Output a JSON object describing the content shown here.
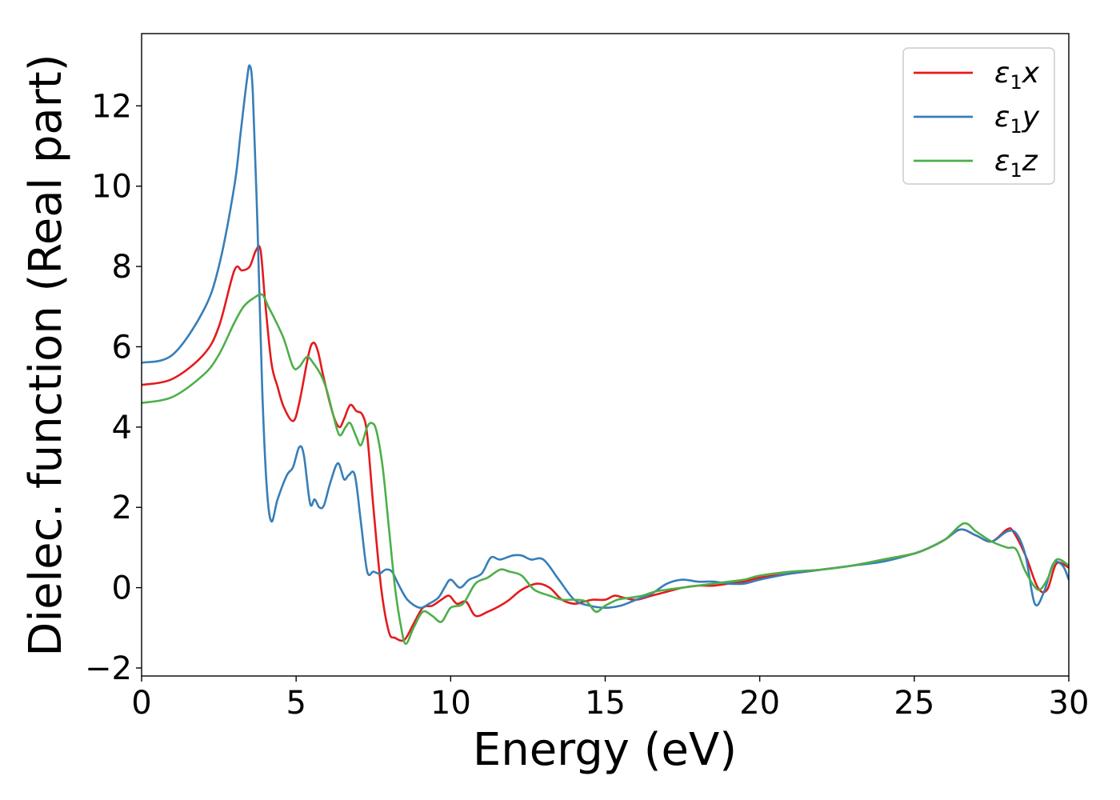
{
  "chart_data": {
    "type": "line",
    "xlabel": "Energy (eV)",
    "ylabel": "Dielec. function (Real part)",
    "xlim": [
      0,
      30
    ],
    "ylim": [
      -2.2,
      13.8
    ],
    "xticks": [
      0,
      5,
      10,
      15,
      20,
      25,
      30
    ],
    "yticks": [
      -2,
      0,
      2,
      4,
      6,
      8,
      10,
      12
    ],
    "xtick_labels": [
      "0",
      "5",
      "10",
      "15",
      "20",
      "25",
      "30"
    ],
    "ytick_labels": [
      "−2",
      "0",
      "2",
      "4",
      "6",
      "8",
      "10",
      "12"
    ],
    "grid": false,
    "legend_position": "top-right",
    "series": [
      {
        "name": "ε1x",
        "label_main": "ε",
        "label_sub": "1",
        "label_tail": "x",
        "color": "#e41a1c",
        "x": [
          0,
          1,
          2,
          2.5,
          3,
          3.25,
          3.5,
          3.7,
          3.85,
          4.0,
          4.2,
          4.4,
          4.6,
          4.9,
          5.1,
          5.4,
          5.55,
          5.7,
          5.9,
          6.2,
          6.4,
          6.55,
          6.75,
          6.95,
          7.15,
          7.3,
          7.5,
          7.75,
          8.0,
          8.2,
          8.5,
          8.8,
          9.1,
          9.4,
          9.7,
          9.95,
          10.2,
          10.5,
          10.8,
          11.2,
          11.6,
          11.9,
          12.3,
          12.8,
          13.2,
          13.6,
          14.0,
          14.3,
          14.6,
          15.0,
          15.3,
          15.6,
          16.0,
          16.5,
          17.0,
          17.5,
          18.0,
          18.5,
          19.0,
          19.5,
          20.0,
          21.0,
          22.0,
          23.0,
          24.0,
          25.0,
          25.5,
          26.0,
          26.5,
          27.0,
          27.5,
          28.0,
          28.2,
          28.6,
          29.0,
          29.3,
          29.6,
          30.0
        ],
        "values": [
          5.05,
          5.2,
          5.8,
          6.5,
          7.9,
          7.9,
          8.0,
          8.4,
          8.4,
          7.1,
          5.6,
          5.0,
          4.5,
          4.15,
          4.6,
          5.8,
          6.1,
          5.9,
          5.2,
          4.3,
          4.0,
          4.2,
          4.55,
          4.4,
          4.3,
          3.8,
          2.0,
          0.0,
          -1.1,
          -1.25,
          -1.3,
          -0.9,
          -0.5,
          -0.45,
          -0.3,
          -0.2,
          -0.4,
          -0.35,
          -0.7,
          -0.6,
          -0.45,
          -0.3,
          -0.05,
          0.1,
          0.0,
          -0.3,
          -0.4,
          -0.35,
          -0.3,
          -0.3,
          -0.2,
          -0.25,
          -0.3,
          -0.2,
          -0.1,
          0.0,
          0.05,
          0.05,
          0.1,
          0.15,
          0.25,
          0.35,
          0.45,
          0.55,
          0.7,
          0.85,
          1.0,
          1.2,
          1.45,
          1.3,
          1.15,
          1.45,
          1.4,
          0.8,
          0.0,
          -0.05,
          0.6,
          0.5
        ]
      },
      {
        "name": "ε1y",
        "label_main": "ε",
        "label_sub": "1",
        "label_tail": "y",
        "color": "#377eb8",
        "x": [
          0,
          1,
          2,
          2.5,
          3.0,
          3.2,
          3.4,
          3.5,
          3.6,
          3.75,
          3.9,
          4.05,
          4.2,
          4.4,
          4.7,
          4.9,
          5.1,
          5.25,
          5.45,
          5.6,
          5.75,
          5.9,
          6.1,
          6.35,
          6.55,
          6.7,
          6.9,
          7.1,
          7.3,
          7.5,
          7.7,
          7.9,
          8.1,
          8.3,
          8.6,
          9.0,
          9.3,
          9.6,
          9.8,
          10.0,
          10.3,
          10.6,
          11.0,
          11.3,
          11.6,
          12.0,
          12.3,
          12.6,
          13.0,
          13.5,
          14.0,
          14.5,
          15.0,
          15.5,
          16.0,
          16.5,
          17.0,
          17.5,
          18.0,
          18.5,
          19.0,
          19.5,
          20.0,
          21.0,
          22.0,
          23.0,
          24.0,
          25.0,
          25.5,
          26.0,
          26.5,
          27.0,
          27.5,
          28.0,
          28.3,
          28.6,
          28.9,
          29.2,
          29.5,
          29.8,
          30.0
        ],
        "values": [
          5.6,
          5.8,
          6.9,
          8.0,
          10.0,
          11.3,
          12.6,
          13.0,
          12.3,
          9.0,
          5.0,
          2.5,
          1.65,
          2.2,
          2.8,
          3.0,
          3.5,
          3.3,
          2.1,
          2.2,
          2.0,
          2.05,
          2.6,
          3.1,
          2.7,
          2.8,
          2.8,
          1.6,
          0.4,
          0.4,
          0.35,
          0.45,
          0.4,
          0.1,
          -0.3,
          -0.5,
          -0.4,
          -0.25,
          0.0,
          0.2,
          0.0,
          0.2,
          0.35,
          0.75,
          0.7,
          0.8,
          0.8,
          0.7,
          0.7,
          0.2,
          -0.3,
          -0.45,
          -0.5,
          -0.45,
          -0.3,
          -0.15,
          0.1,
          0.2,
          0.15,
          0.15,
          0.1,
          0.1,
          0.2,
          0.35,
          0.45,
          0.55,
          0.65,
          0.85,
          1.0,
          1.2,
          1.45,
          1.3,
          1.15,
          1.4,
          1.35,
          0.8,
          -0.4,
          -0.1,
          0.6,
          0.55,
          0.2
        ]
      },
      {
        "name": "ε1z",
        "label_main": "ε",
        "label_sub": "1",
        "label_tail": "z",
        "color": "#4daf4a",
        "x": [
          0,
          1,
          2,
          2.5,
          3.0,
          3.3,
          3.6,
          3.9,
          4.1,
          4.3,
          4.6,
          4.9,
          5.1,
          5.35,
          5.55,
          5.8,
          6.0,
          6.2,
          6.4,
          6.6,
          6.75,
          6.95,
          7.1,
          7.3,
          7.45,
          7.6,
          7.8,
          8.0,
          8.2,
          8.4,
          8.55,
          8.8,
          9.1,
          9.4,
          9.7,
          10.0,
          10.4,
          10.8,
          11.2,
          11.6,
          11.9,
          12.3,
          12.7,
          13.2,
          13.6,
          14.0,
          14.4,
          14.7,
          15.0,
          15.4,
          15.8,
          16.2,
          16.6,
          17.0,
          17.5,
          18.0,
          18.5,
          19.0,
          19.5,
          20.0,
          21.0,
          22.0,
          23.0,
          24.0,
          25.0,
          25.5,
          26.0,
          26.6,
          27.0,
          27.5,
          28.0,
          28.3,
          28.6,
          29.0,
          29.3,
          29.6,
          30.0
        ],
        "values": [
          4.6,
          4.75,
          5.3,
          5.8,
          6.6,
          7.0,
          7.2,
          7.3,
          7.0,
          6.7,
          6.2,
          5.5,
          5.5,
          5.75,
          5.6,
          5.3,
          4.9,
          4.3,
          3.8,
          4.0,
          4.1,
          3.75,
          3.55,
          4.0,
          4.1,
          3.9,
          3.0,
          1.5,
          0.0,
          -1.0,
          -1.4,
          -1.0,
          -0.6,
          -0.7,
          -0.85,
          -0.5,
          -0.4,
          0.1,
          0.25,
          0.45,
          0.4,
          0.3,
          -0.05,
          -0.2,
          -0.3,
          -0.3,
          -0.35,
          -0.6,
          -0.45,
          -0.3,
          -0.25,
          -0.2,
          -0.1,
          -0.05,
          0.0,
          0.05,
          0.1,
          0.15,
          0.2,
          0.3,
          0.4,
          0.45,
          0.55,
          0.7,
          0.85,
          1.0,
          1.2,
          1.6,
          1.4,
          1.15,
          1.0,
          0.95,
          0.4,
          -0.05,
          0.2,
          0.7,
          0.55
        ]
      }
    ]
  }
}
